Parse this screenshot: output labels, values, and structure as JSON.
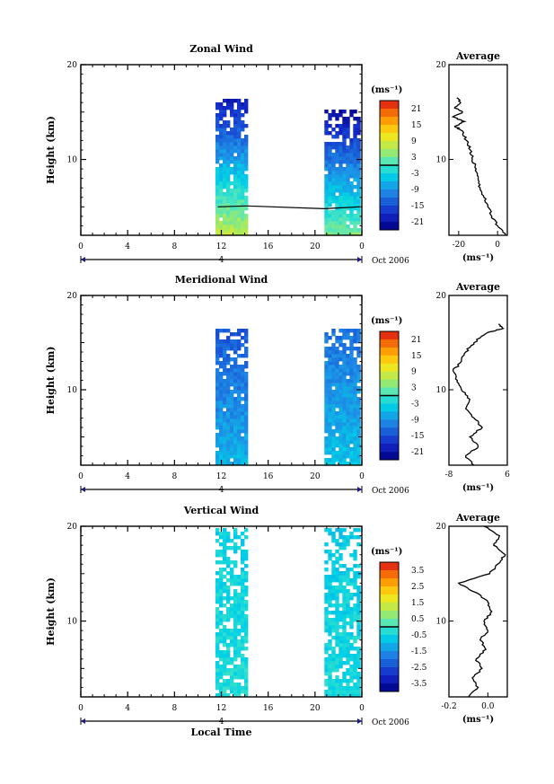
{
  "chart_data": [
    {
      "type": "heatmap",
      "title": "Zonal Wind",
      "ylabel": "Height (km)",
      "xticks": [
        "0",
        "4",
        "8",
        "12",
        "16",
        "20",
        "0"
      ],
      "yticks": [
        "20",
        "10"
      ],
      "ylim": [
        2,
        20
      ],
      "xlim": [
        0,
        24
      ],
      "day_label": "4",
      "month_label": "Oct 2006",
      "colorbar": {
        "unit": "(ms⁻¹)",
        "ticks": [
          "21",
          "15",
          "9",
          "3",
          "-3",
          "-9",
          "-15",
          "-21"
        ],
        "range": [
          -24,
          24
        ]
      },
      "data_blocks": [
        {
          "x": [
            11.5,
            14.2
          ],
          "y": [
            2.0,
            16.5
          ],
          "value_low": 8,
          "value_high": -20
        },
        {
          "x": [
            20.8,
            23.8
          ],
          "y": [
            2.0,
            15.5
          ],
          "value_low": 4,
          "value_high": -22
        }
      ],
      "contour": {
        "label": "0 m/s",
        "x": [
          11.7,
          14.2,
          20.8,
          23.8
        ],
        "y": [
          5.0,
          5.1,
          4.8,
          5.0
        ]
      },
      "profile": {
        "title": "Average",
        "xticks": [
          "-20",
          "0"
        ],
        "yticks": [
          "20",
          "10"
        ],
        "xlim": [
          -25,
          5
        ],
        "xlabel": "(ms⁻¹)",
        "height": [
          2,
          3,
          4,
          5,
          6,
          7,
          8,
          9,
          10,
          11,
          12,
          13,
          13.5,
          14,
          14.5,
          15,
          15.5,
          16,
          16.5
        ],
        "value": [
          4,
          0,
          -3,
          -5,
          -7,
          -9,
          -10,
          -11,
          -13,
          -14,
          -16,
          -18,
          -22,
          -17,
          -23,
          -18,
          -22,
          -19,
          -21
        ]
      }
    },
    {
      "type": "heatmap",
      "title": "Meridional Wind",
      "ylabel": "Height (km)",
      "xticks": [
        "0",
        "4",
        "8",
        "12",
        "16",
        "20",
        "0"
      ],
      "yticks": [
        "20",
        "10"
      ],
      "ylim": [
        2,
        20
      ],
      "xlim": [
        0,
        24
      ],
      "day_label": "4",
      "month_label": "Oct 2006",
      "colorbar": {
        "unit": "(ms⁻¹)",
        "ticks": [
          "21",
          "15",
          "9",
          "3",
          "-3",
          "-9",
          "-15",
          "-21"
        ],
        "range": [
          -24,
          24
        ]
      },
      "data_blocks": [
        {
          "x": [
            11.5,
            14.2
          ],
          "y": [
            2.0,
            16.5
          ],
          "value_low": -6,
          "value_high": -14
        },
        {
          "x": [
            20.8,
            23.8
          ],
          "y": [
            2.0,
            16.5
          ],
          "value_low": -5,
          "value_high": -12
        }
      ],
      "profile": {
        "title": "Average",
        "xticks": [
          "-8",
          "6"
        ],
        "yticks": [
          "20",
          "10"
        ],
        "xlim": [
          -8,
          6
        ],
        "xlabel": "(ms⁻¹)",
        "height": [
          2,
          3,
          4,
          5,
          6,
          7,
          8,
          9,
          10,
          11,
          12,
          13,
          14,
          15,
          16,
          16.5,
          17
        ],
        "value": [
          -2,
          -4,
          -1,
          -3,
          0,
          -2,
          -4,
          -3,
          -5,
          -6,
          -7,
          -5,
          -4,
          -2,
          1,
          5,
          4
        ]
      }
    },
    {
      "type": "heatmap",
      "title": "Vertical Wind",
      "ylabel": "Height (km)",
      "xlabel": "Local Time",
      "xticks": [
        "0",
        "4",
        "8",
        "12",
        "16",
        "20",
        "0"
      ],
      "yticks": [
        "20",
        "10"
      ],
      "ylim": [
        2,
        20
      ],
      "xlim": [
        0,
        24
      ],
      "day_label": "4",
      "month_label": "Oct 2006",
      "colorbar": {
        "unit": "(ms⁻¹)",
        "ticks": [
          "3.5",
          "2.5",
          "1.5",
          "0.5",
          "-0.5",
          "-1.5",
          "-2.5",
          "-3.5"
        ],
        "range": [
          -4,
          4
        ]
      },
      "data_blocks": [
        {
          "x": [
            11.5,
            14.2
          ],
          "y": [
            2.0,
            20.0
          ],
          "value_low": -0.3,
          "value_high": -0.6
        },
        {
          "x": [
            20.8,
            23.8
          ],
          "y": [
            2.0,
            20.0
          ],
          "value_low": -0.4,
          "value_high": -0.7
        }
      ],
      "profile": {
        "title": "Average",
        "xticks": [
          "-0.2",
          "0.0"
        ],
        "yticks": [
          "20",
          "10"
        ],
        "xlim": [
          -0.2,
          0.1
        ],
        "xlabel": "(ms⁻¹)",
        "height": [
          2,
          3,
          4,
          5,
          6,
          7,
          8,
          9,
          10,
          11,
          12,
          13,
          14,
          15,
          16,
          17,
          18,
          19,
          20
        ],
        "value": [
          -0.1,
          -0.05,
          -0.08,
          -0.03,
          -0.06,
          -0.01,
          -0.04,
          0.0,
          -0.02,
          0.02,
          0.0,
          -0.06,
          -0.15,
          0.01,
          0.05,
          0.09,
          0.03,
          0.06,
          -0.02
        ]
      }
    }
  ]
}
